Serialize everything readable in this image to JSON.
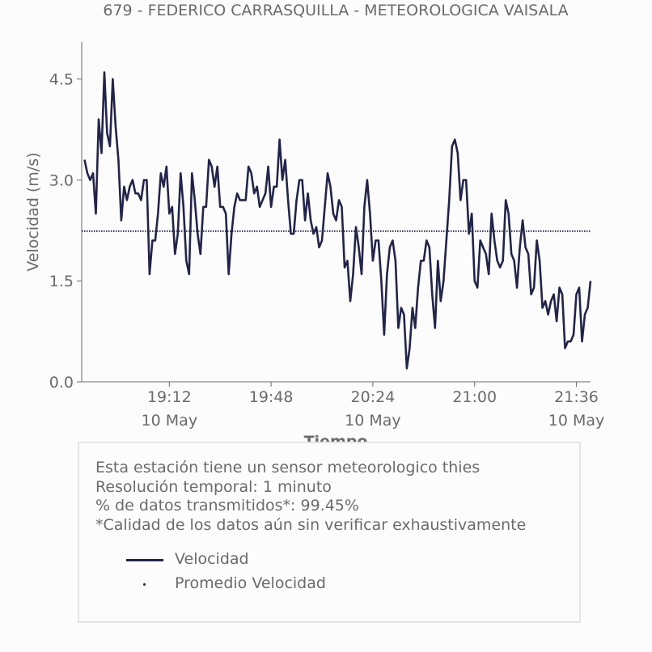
{
  "chart_data": {
    "type": "line",
    "title": "679 - FEDERICO CARRASQUILLA - METEOROLOGICA VAISALA",
    "xlabel": "Tiempo",
    "ylabel": "Velocidad (m/s)",
    "ylim": [
      0,
      5.05
    ],
    "yticks": [
      0.0,
      1.5,
      3.0,
      4.5
    ],
    "ytick_labels": [
      "0.0",
      "1.5",
      "3.0",
      "4.5"
    ],
    "x_minutes_from": "18:42",
    "xlim_minutes": [
      -1,
      179
    ],
    "xticks": [
      {
        "minute": 30,
        "time": "19:12",
        "date": "10 May"
      },
      {
        "minute": 66,
        "time": "19:48",
        "date": ""
      },
      {
        "minute": 102,
        "time": "20:24",
        "date": "10 May"
      },
      {
        "minute": 138,
        "time": "21:00",
        "date": ""
      },
      {
        "minute": 174,
        "time": "21:36",
        "date": "10 May"
      }
    ],
    "series": [
      {
        "name": "Velocidad",
        "color": "#22244a",
        "values": [
          3.3,
          3.1,
          3.0,
          3.1,
          2.5,
          3.9,
          3.4,
          4.6,
          3.7,
          3.5,
          4.5,
          3.8,
          3.3,
          2.4,
          2.9,
          2.7,
          2.9,
          3.0,
          2.8,
          2.8,
          2.7,
          3.0,
          3.0,
          1.6,
          2.1,
          2.1,
          2.5,
          3.1,
          2.9,
          3.2,
          2.5,
          2.6,
          1.9,
          2.2,
          3.1,
          2.6,
          1.8,
          1.6,
          3.1,
          2.7,
          2.2,
          1.9,
          2.6,
          2.6,
          3.3,
          3.2,
          2.9,
          3.2,
          2.6,
          2.6,
          2.5,
          1.6,
          2.2,
          2.6,
          2.8,
          2.7,
          2.7,
          2.7,
          3.2,
          3.1,
          2.8,
          2.9,
          2.6,
          2.7,
          2.8,
          3.2,
          2.6,
          2.9,
          2.9,
          3.6,
          3.0,
          3.3,
          2.7,
          2.2,
          2.2,
          2.7,
          3.0,
          3.0,
          2.4,
          2.8,
          2.4,
          2.2,
          2.3,
          2.0,
          2.1,
          2.6,
          3.1,
          2.9,
          2.5,
          2.4,
          2.7,
          2.6,
          1.7,
          1.8,
          1.2,
          1.6,
          2.3,
          2.0,
          1.6,
          2.6,
          3.0,
          2.5,
          1.8,
          2.1,
          2.1,
          1.5,
          0.7,
          1.6,
          2.0,
          2.1,
          1.8,
          0.8,
          1.1,
          1.0,
          0.2,
          0.5,
          1.1,
          0.8,
          1.4,
          1.8,
          1.8,
          2.1,
          2.0,
          1.3,
          0.8,
          1.8,
          1.2,
          1.5,
          2.1,
          2.7,
          3.5,
          3.6,
          3.4,
          2.7,
          3.0,
          3.0,
          2.2,
          2.5,
          1.5,
          1.4,
          2.1,
          2.0,
          1.9,
          1.6,
          2.5,
          2.1,
          1.8,
          1.7,
          1.8,
          2.7,
          2.5,
          1.9,
          1.8,
          1.4,
          2.0,
          2.4,
          2.0,
          1.9,
          1.3,
          1.4,
          2.1,
          1.8,
          1.1,
          1.2,
          1.0,
          1.2,
          1.3,
          0.9,
          1.4,
          1.3,
          0.5,
          0.6,
          0.6,
          0.7,
          1.3,
          1.4,
          0.6,
          1.0,
          1.1,
          1.5
        ]
      },
      {
        "name": "Promedio Velocidad",
        "color": "#22244a",
        "style": "dotted",
        "values": [
          2.24
        ]
      }
    ],
    "grid": false,
    "legend": "bottom-box"
  },
  "info": {
    "lines": [
      "Esta estación tiene un sensor meteorologico thies",
      "Resolución temporal: 1 minuto",
      "% de datos transmitidos*: 99.45%",
      "*Calidad de los datos aún sin verificar exhaustivamente"
    ],
    "legend": [
      {
        "label": "Velocidad",
        "marker": "line"
      },
      {
        "label": "Promedio Velocidad",
        "marker": "dot"
      }
    ]
  }
}
